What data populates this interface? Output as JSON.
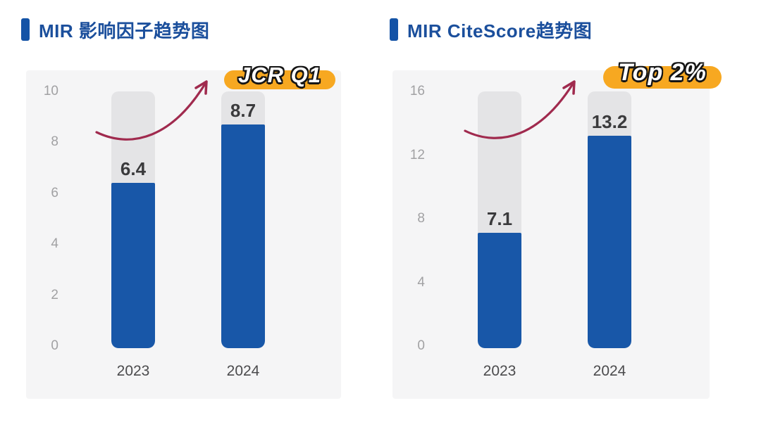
{
  "colors": {
    "page_bg": "#ffffff",
    "title_blue": "#1b4f9c",
    "marker_blue": "#1453a6",
    "card_bg": "#f5f5f6",
    "track_gray": "#e4e4e6",
    "bar_blue": "#1857a8",
    "badge_orange": "#f7a821",
    "arrow_red": "#a02a4e",
    "tick_gray": "#a1a1a3",
    "value_dark": "#3a3a3c",
    "xlabel_gray": "#4b4b4d"
  },
  "chart_data": [
    {
      "type": "bar",
      "title": "MIR 影响因子趋势图",
      "annotation": "JCR Q1",
      "categories": [
        "2023",
        "2024"
      ],
      "values": [
        6.4,
        8.7
      ],
      "value_labels": [
        "6.4",
        "8.7"
      ],
      "ylim": [
        0,
        10
      ],
      "yticks": [
        10,
        8,
        6,
        4,
        2,
        0
      ],
      "xlabel": "",
      "ylabel": "",
      "grid": false,
      "legend": false,
      "bar_style": "rounded bar on full-height gray track",
      "annotation_arrow": "curved-up-right"
    },
    {
      "type": "bar",
      "title": "MIR CiteScore趋势图",
      "annotation": "Top 2%",
      "categories": [
        "2023",
        "2024"
      ],
      "values": [
        7.1,
        13.2
      ],
      "value_labels": [
        "7.1",
        "13.2"
      ],
      "ylim": [
        0,
        16
      ],
      "yticks": [
        16,
        12,
        8,
        4,
        0
      ],
      "xlabel": "",
      "ylabel": "",
      "grid": false,
      "legend": false,
      "bar_style": "rounded bar on full-height gray track",
      "annotation_arrow": "curved-up-right"
    }
  ]
}
